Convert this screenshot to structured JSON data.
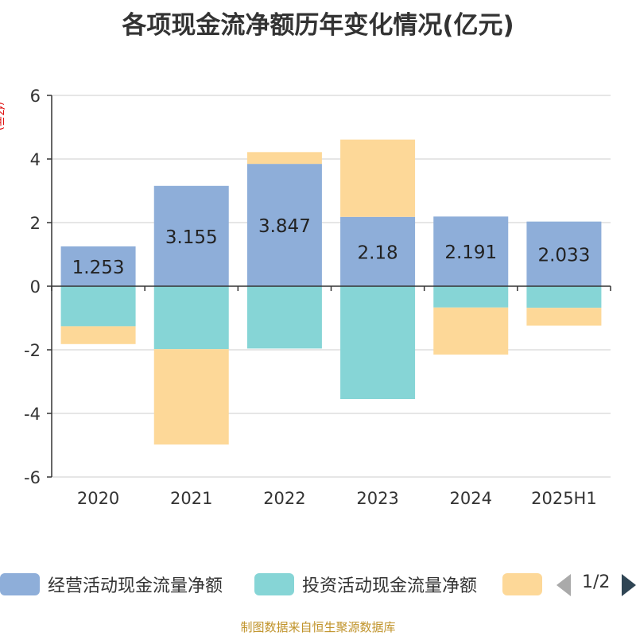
{
  "chart_data": {
    "type": "bar",
    "stacked": true,
    "title": "各项现金流净额历年变化情况(亿元)",
    "ylabel": "(亿元)",
    "ylim": [
      -6,
      6
    ],
    "yticks": [
      6,
      4,
      2,
      0,
      -2,
      -4,
      -6
    ],
    "categories": [
      "2020",
      "2021",
      "2022",
      "2023",
      "2024",
      "2025H1"
    ],
    "series": [
      {
        "name": "经营活动现金流量净额",
        "color": "#8eaed9",
        "values": [
          1.253,
          3.155,
          3.847,
          2.18,
          2.191,
          2.033
        ],
        "labels_shown": true
      },
      {
        "name": "投资活动现金流量净额",
        "color": "#86d5d6",
        "values": [
          -1.26,
          -1.98,
          -1.96,
          -3.55,
          -0.67,
          -0.68
        ],
        "labels_shown": false
      },
      {
        "name": "",
        "color": "#fdd898",
        "values": [
          -0.56,
          -3.0,
          0.37,
          2.43,
          -1.48,
          -0.56
        ],
        "labels_shown": false
      }
    ],
    "grid": true,
    "legend": "bottom"
  },
  "legend": {
    "items": [
      "经营活动现金流量净额",
      "投资活动现金流量净额",
      ""
    ],
    "page": "1/2"
  },
  "source": "制图数据来自恒生聚源数据库"
}
